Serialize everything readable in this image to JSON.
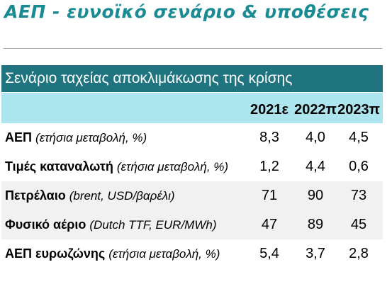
{
  "page": {
    "title": "ΑΕΠ - ευνοϊκό σενάριο & υποθέσεις"
  },
  "table": {
    "header": "Σενάριο ταχείας αποκλιμάκωσης της κρίσης",
    "years": [
      "2021ε",
      "2022π",
      "2023π"
    ],
    "rows": [
      {
        "label": "ΑΕΠ",
        "note": "(ετήσια μεταβολή, %)",
        "values": [
          "8,3",
          "4,0",
          "4,5"
        ]
      },
      {
        "label": "Τιμές καταναλωτή",
        "note": "(ετήσια μεταβολή, %)",
        "values": [
          "1,2",
          "4,4",
          "0,6"
        ]
      },
      {
        "label": "Πετρέλαιο",
        "note": "(brent, USD/βαρέλι)",
        "values": [
          "71",
          "90",
          "73"
        ]
      },
      {
        "label": "Φυσικό αέριο",
        "note": "(Dutch TTF, EUR/MWh)",
        "values": [
          "47",
          "89",
          "45"
        ]
      },
      {
        "label": "ΑΕΠ ευρωζώνης",
        "note": "(ετήσια μεταβολή, %)",
        "values": [
          "5,4",
          "3,7",
          "2,8"
        ]
      }
    ]
  },
  "colors": {
    "title": "#1a8a93",
    "header_bg": "#1f7480",
    "years_bg": "#ade5ef",
    "row_shade": "#f1f1f1"
  }
}
